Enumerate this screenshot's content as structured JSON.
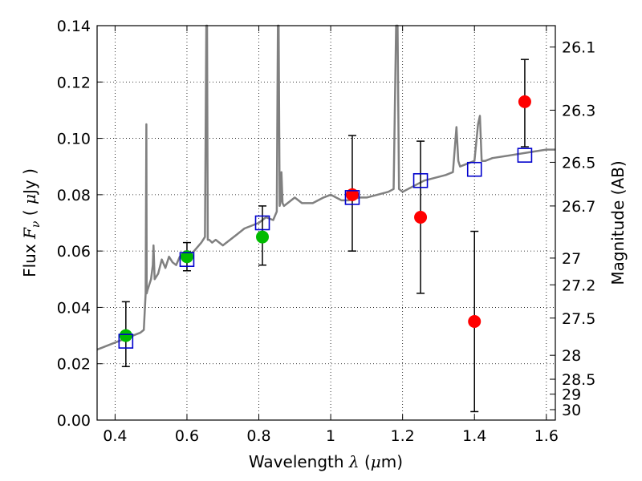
{
  "chart_data": {
    "type": "scatter",
    "title": "",
    "xlabel": "Wavelength  λ (μm)",
    "xlabel_parts": {
      "prefix": "Wavelength  ",
      "lambda": "λ",
      "unit_open": " (",
      "mu": "μ",
      "unit_close": "m)"
    },
    "ylabel": "Flux  Fν  ( μJy )",
    "ylabel_parts": {
      "prefix": "Flux  ",
      "F": "F",
      "nu": "ν",
      "unit_open": "  ( ",
      "mu": "μ",
      "unit_close": "Jy )"
    },
    "ylabel_right": "Magnitude (AB)",
    "xlim": [
      0.35,
      1.625
    ],
    "ylim": [
      0.0,
      0.14
    ],
    "grid": true,
    "x_ticks": [
      {
        "value": 0.4,
        "label": "0.4"
      },
      {
        "value": 0.6,
        "label": "0.6"
      },
      {
        "value": 0.8,
        "label": "0.8"
      },
      {
        "value": 1.0,
        "label": "1"
      },
      {
        "value": 1.2,
        "label": "1.2"
      },
      {
        "value": 1.4,
        "label": "1.4"
      },
      {
        "value": 1.6,
        "label": "1.6"
      }
    ],
    "y_ticks": [
      {
        "value": 0.0,
        "label": "0.00"
      },
      {
        "value": 0.02,
        "label": "0.02"
      },
      {
        "value": 0.04,
        "label": "0.04"
      },
      {
        "value": 0.06,
        "label": "0.06"
      },
      {
        "value": 0.08,
        "label": "0.08"
      },
      {
        "value": 0.1,
        "label": "0.10"
      },
      {
        "value": 0.12,
        "label": "0.12"
      },
      {
        "value": 0.14,
        "label": "0.14"
      }
    ],
    "right_ticks": [
      {
        "flux": 0.1324,
        "label": "26.1"
      },
      {
        "flux": 0.11,
        "label": "26.3"
      },
      {
        "flux": 0.0915,
        "label": "26.5"
      },
      {
        "flux": 0.076,
        "label": "26.7"
      },
      {
        "flux": 0.0575,
        "label": "27"
      },
      {
        "flux": 0.048,
        "label": "27.2"
      },
      {
        "flux": 0.0362,
        "label": "27.5"
      },
      {
        "flux": 0.023,
        "label": "28"
      },
      {
        "flux": 0.0145,
        "label": "28.5"
      },
      {
        "flux": 0.0092,
        "label": "29"
      },
      {
        "flux": 0.0037,
        "label": "30"
      }
    ],
    "colors": {
      "spectrum": "#808080",
      "green_points": "#00bb00",
      "red_points": "#ff0000",
      "model_squares": "#0000cc",
      "error_bars": "#000000"
    },
    "spectrum": {
      "name": "",
      "x": [
        0.35,
        0.37,
        0.39,
        0.41,
        0.43,
        0.45,
        0.47,
        0.48,
        0.485,
        0.487,
        0.488,
        0.49,
        0.5,
        0.505,
        0.507,
        0.51,
        0.52,
        0.53,
        0.54,
        0.55,
        0.56,
        0.57,
        0.58,
        0.59,
        0.6,
        0.62,
        0.64,
        0.65,
        0.654,
        0.656,
        0.658,
        0.662,
        0.67,
        0.68,
        0.7,
        0.72,
        0.74,
        0.76,
        0.78,
        0.8,
        0.82,
        0.84,
        0.85,
        0.853,
        0.855,
        0.858,
        0.861,
        0.863,
        0.866,
        0.87,
        0.88,
        0.9,
        0.92,
        0.95,
        0.98,
        1.0,
        1.03,
        1.05,
        1.08,
        1.1,
        1.13,
        1.16,
        1.175,
        1.182,
        1.186,
        1.19,
        1.2,
        1.23,
        1.26,
        1.29,
        1.32,
        1.34,
        1.35,
        1.355,
        1.36,
        1.38,
        1.4,
        1.41,
        1.415,
        1.42,
        1.43,
        1.45,
        1.5,
        1.55,
        1.6,
        1.625
      ],
      "y": [
        0.025,
        0.026,
        0.027,
        0.028,
        0.029,
        0.03,
        0.031,
        0.032,
        0.045,
        0.105,
        0.045,
        0.046,
        0.05,
        0.055,
        0.062,
        0.05,
        0.052,
        0.057,
        0.054,
        0.058,
        0.056,
        0.055,
        0.058,
        0.059,
        0.058,
        0.06,
        0.063,
        0.065,
        0.14,
        0.14,
        0.064,
        0.064,
        0.063,
        0.064,
        0.062,
        0.064,
        0.066,
        0.068,
        0.069,
        0.07,
        0.072,
        0.071,
        0.074,
        0.14,
        0.14,
        0.076,
        0.078,
        0.088,
        0.077,
        0.076,
        0.077,
        0.079,
        0.077,
        0.077,
        0.079,
        0.08,
        0.078,
        0.078,
        0.079,
        0.079,
        0.08,
        0.081,
        0.082,
        0.14,
        0.14,
        0.082,
        0.081,
        0.083,
        0.085,
        0.086,
        0.087,
        0.088,
        0.104,
        0.092,
        0.09,
        0.091,
        0.092,
        0.105,
        0.108,
        0.092,
        0.092,
        0.093,
        0.094,
        0.095,
        0.096,
        0.096
      ]
    },
    "series": [
      {
        "name": "",
        "marker": "circle",
        "color": "#00bb00",
        "points": [
          {
            "x": 0.43,
            "y": 0.03,
            "err_low": 0.019,
            "err_high": 0.042
          },
          {
            "x": 0.6,
            "y": 0.058,
            "err_low": 0.053,
            "err_high": 0.063
          },
          {
            "x": 0.81,
            "y": 0.065,
            "err_low": 0.055,
            "err_high": 0.076
          }
        ]
      },
      {
        "name": "",
        "marker": "circle",
        "color": "#ff0000",
        "points": [
          {
            "x": 1.06,
            "y": 0.08,
            "err_low": 0.06,
            "err_high": 0.101
          },
          {
            "x": 1.25,
            "y": 0.072,
            "err_low": 0.045,
            "err_high": 0.099
          },
          {
            "x": 1.4,
            "y": 0.035,
            "err_low": 0.003,
            "err_high": 0.067
          },
          {
            "x": 1.54,
            "y": 0.113,
            "err_low": 0.097,
            "err_high": 0.128
          }
        ]
      },
      {
        "name": "",
        "marker": "square",
        "color": "#0000cc",
        "points": [
          {
            "x": 0.43,
            "y": 0.028
          },
          {
            "x": 0.6,
            "y": 0.057
          },
          {
            "x": 0.81,
            "y": 0.07
          },
          {
            "x": 1.06,
            "y": 0.079
          },
          {
            "x": 1.25,
            "y": 0.085
          },
          {
            "x": 1.4,
            "y": 0.089
          },
          {
            "x": 1.54,
            "y": 0.094
          }
        ]
      }
    ]
  }
}
